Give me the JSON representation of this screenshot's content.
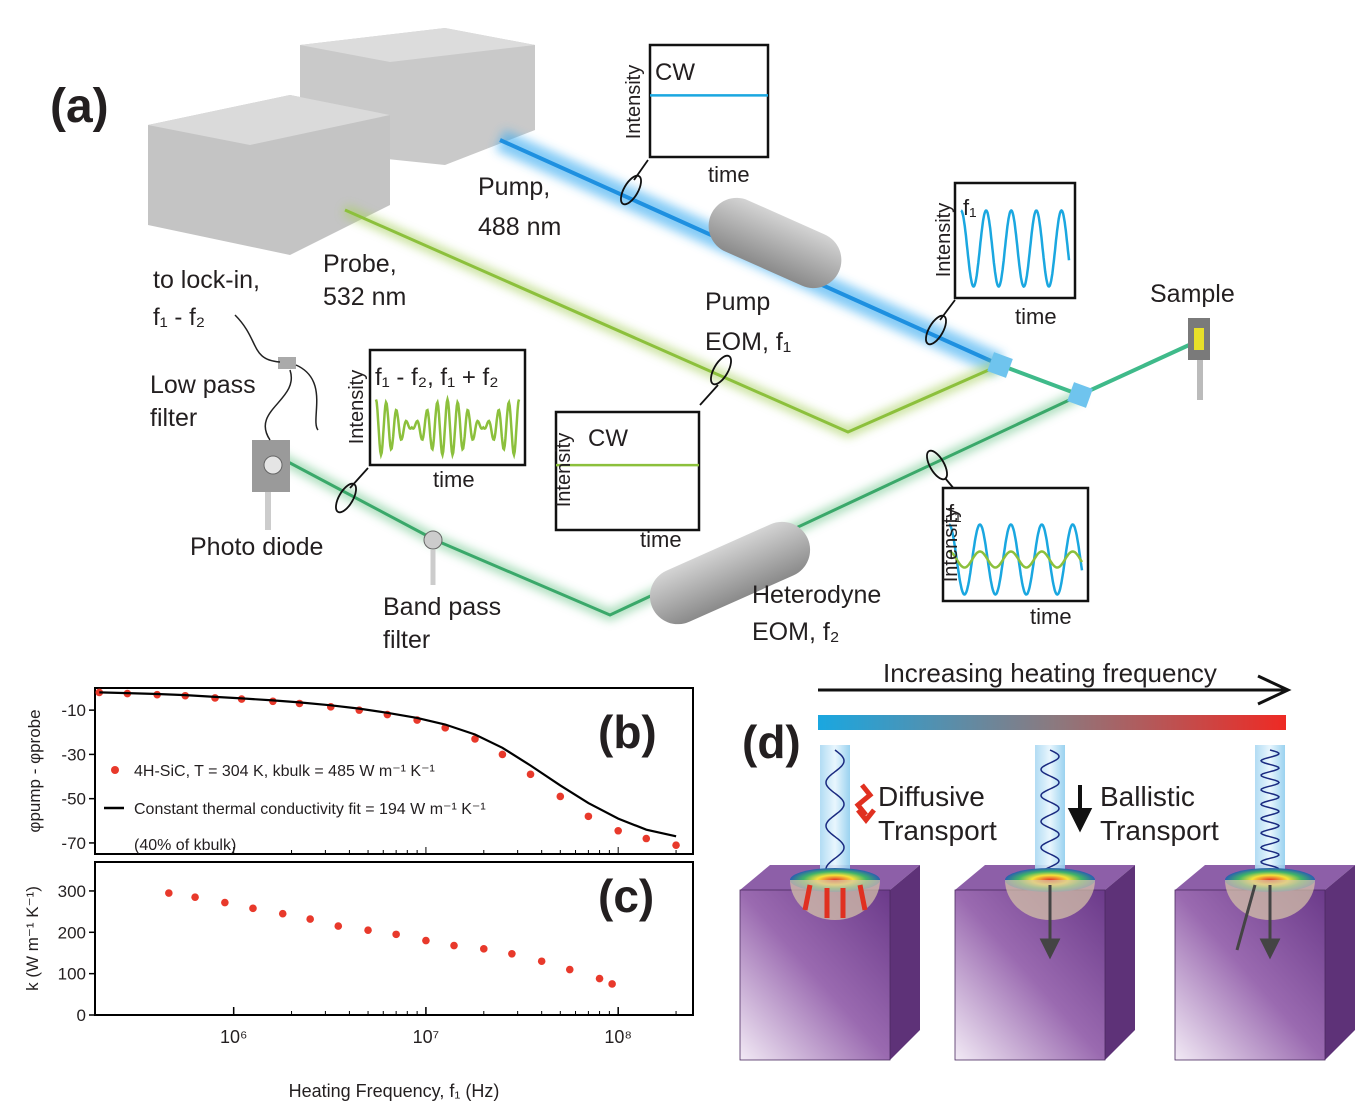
{
  "panel_a": {
    "texts": [
      "(a)",
      "CW",
      "Intensity",
      "time",
      "f₁",
      "Intensity",
      "time",
      "f₁ - f₂, f₁ + f₂",
      "Intensity",
      "time",
      "CW",
      "Intensity",
      "time",
      "f₁",
      "Intensity",
      "time",
      "Pump,",
      "488 nm",
      "Probe,",
      "532 nm",
      "to lock-in,",
      "f₁ - f₂",
      "Low pass",
      "filter",
      "Photo diode",
      "Band pass",
      "filter",
      "Pump",
      "EOM, f₁",
      "Heterodyne",
      "EOM, f₂",
      "Sample"
    ]
  },
  "chart_data": [
    {
      "type": "line",
      "panel_label": "(b)",
      "ylabel": "φpump - φprobe",
      "xscale": "log",
      "xlim": [
        190000,
        245000000
      ],
      "ylim": [
        -75,
        0
      ],
      "yticks": [
        -10,
        -30,
        -50,
        -70
      ],
      "x": [
        200000,
        280000,
        400000,
        560000,
        800000,
        1100000,
        1600000,
        2200000,
        3200000,
        4500000,
        6300000,
        9000000,
        12600000,
        18000000,
        25000000,
        35000000,
        50000000,
        70000000,
        100000000,
        140000000,
        200000000
      ],
      "series": [
        {
          "name": "4H-SiC, T = 304 K, kbulk = 485 W m⁻¹ K⁻¹",
          "color": "#e8392b",
          "style": "dots",
          "values": [
            -2,
            -2.5,
            -3,
            -3.5,
            -4.5,
            -5,
            -6,
            -7,
            -8.5,
            -10,
            -12,
            -14.5,
            -18,
            -23,
            -30,
            -39,
            -49,
            -58,
            -64.5,
            -68,
            -71
          ]
        },
        {
          "name": "Constant thermal conductivity fit = 194 W m⁻¹ K⁻¹",
          "color": "#000000",
          "style": "line",
          "values": [
            -2,
            -2.3,
            -2.7,
            -3.2,
            -4,
            -4.7,
            -5.6,
            -6.5,
            -7.8,
            -9.3,
            -11.2,
            -13.5,
            -16.5,
            -21,
            -27,
            -35,
            -44,
            -52,
            -59,
            -64,
            -67
          ]
        }
      ],
      "legend_note": "(40% of kbulk)"
    },
    {
      "type": "scatter",
      "panel_label": "(c)",
      "ylabel": "k (W m⁻¹ K⁻¹)",
      "xlabel": "Heating Frequency, f₁ (Hz)",
      "xscale": "log",
      "xlim": [
        190000,
        245000000
      ],
      "ylim": [
        0,
        370
      ],
      "yticks": [
        0,
        100,
        200,
        300
      ],
      "xticks": [
        {
          "value": 1000000,
          "label": "10⁶"
        },
        {
          "value": 10000000,
          "label": "10⁷"
        },
        {
          "value": 100000000,
          "label": "10⁸"
        }
      ],
      "color": "#e8392b",
      "x": [
        460000,
        630000,
        900000,
        1260000,
        1800000,
        2500000,
        3500000,
        5000000,
        7000000,
        10000000,
        14000000,
        20000000,
        28000000,
        40000000,
        56000000,
        80000000,
        93000000
      ],
      "values": [
        295,
        285,
        272,
        258,
        245,
        232,
        215,
        205,
        195,
        180,
        168,
        160,
        148,
        130,
        110,
        88,
        75
      ]
    }
  ],
  "panel_d": {
    "texts": [
      "(d)",
      "Increasing heating frequency",
      "Diffusive",
      "Transport",
      "Ballistic",
      "Transport"
    ]
  }
}
